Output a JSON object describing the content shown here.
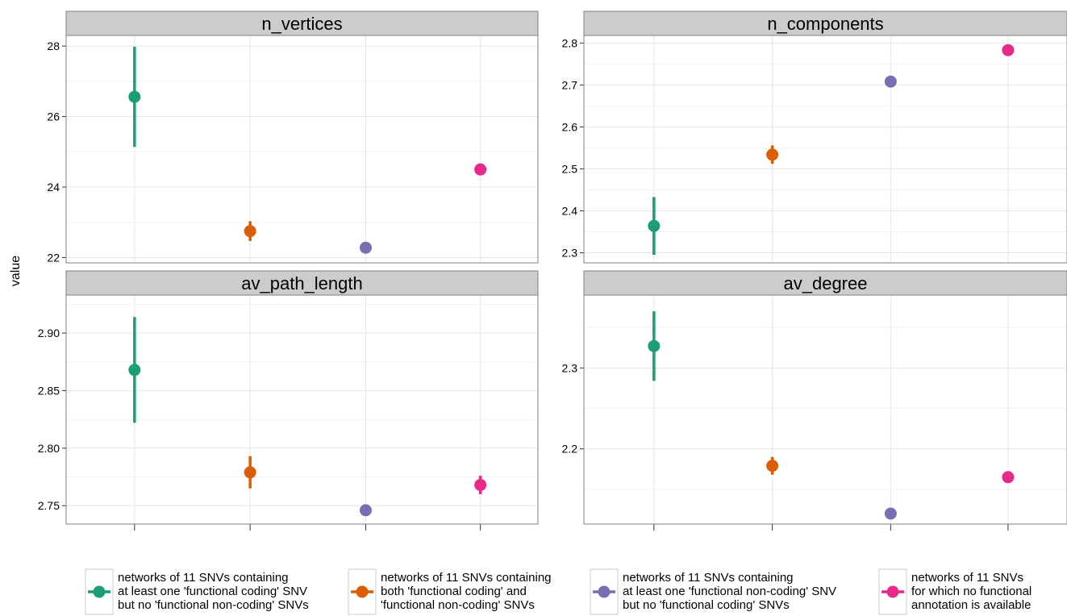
{
  "chart_data": {
    "type": "scatter",
    "ylabel": "value",
    "grid": true,
    "legend_position": "bottom",
    "series": [
      {
        "name": "networks of 11 SNVs containing\nat least one 'functional coding' SNV\nbut no 'functional non-coding' SNVs",
        "color": "#1b9e77"
      },
      {
        "name": "networks of 11 SNVs containing\nboth 'functional coding' and\n'functional non-coding' SNVs",
        "color": "#d95f02"
      },
      {
        "name": "networks of 11 SNVs containing\nat least one 'functional non-coding' SNV\nbut no 'functional coding' SNVs",
        "color": "#7570b3"
      },
      {
        "name": "networks of 11 SNVs\nfor which no functional\nannotation is available",
        "color": "#e7298a"
      }
    ],
    "panels": [
      {
        "title": "n_vertices",
        "ylim": [
          21.85,
          28.3
        ],
        "yticks": [
          22,
          24,
          26,
          28
        ],
        "ytick_labels": [
          "22",
          "24",
          "26",
          "28"
        ],
        "points": [
          {
            "value": 26.56,
            "low": 25.14,
            "high": 27.98
          },
          {
            "value": 22.75,
            "low": 22.47,
            "high": 23.03
          },
          {
            "value": 22.28,
            "low": 22.22,
            "high": 22.34
          },
          {
            "value": 24.5,
            "low": 24.36,
            "high": 24.64
          }
        ]
      },
      {
        "title": "n_components",
        "ylim": [
          2.276,
          2.818
        ],
        "yticks": [
          2.3,
          2.4,
          2.5,
          2.6,
          2.7,
          2.8
        ],
        "ytick_labels": [
          "2.3",
          "2.4",
          "2.5",
          "2.6",
          "2.7",
          "2.8"
        ],
        "points": [
          {
            "value": 2.364,
            "low": 2.295,
            "high": 2.433
          },
          {
            "value": 2.534,
            "low": 2.512,
            "high": 2.556
          },
          {
            "value": 2.708,
            "low": 2.701,
            "high": 2.715
          },
          {
            "value": 2.783,
            "low": 2.778,
            "high": 2.788
          }
        ]
      },
      {
        "title": "av_path_length",
        "ylim": [
          2.734,
          2.933
        ],
        "yticks": [
          2.75,
          2.8,
          2.85,
          2.9
        ],
        "ytick_labels": [
          "2.75",
          "2.80",
          "2.85",
          "2.90"
        ],
        "points": [
          {
            "value": 2.868,
            "low": 2.822,
            "high": 2.914
          },
          {
            "value": 2.779,
            "low": 2.765,
            "high": 2.793
          },
          {
            "value": 2.746,
            "low": 2.743,
            "high": 2.749
          },
          {
            "value": 2.768,
            "low": 2.76,
            "high": 2.776
          }
        ]
      },
      {
        "title": "av_degree",
        "ylim": [
          2.107,
          2.39
        ],
        "yticks": [
          2.2,
          2.3
        ],
        "ytick_labels": [
          "2.2",
          "2.3"
        ],
        "points": [
          {
            "value": 2.327,
            "low": 2.284,
            "high": 2.37
          },
          {
            "value": 2.179,
            "low": 2.168,
            "high": 2.19
          },
          {
            "value": 2.12,
            "low": 2.116,
            "high": 2.124
          },
          {
            "value": 2.165,
            "low": 2.161,
            "high": 2.169
          }
        ]
      }
    ]
  }
}
